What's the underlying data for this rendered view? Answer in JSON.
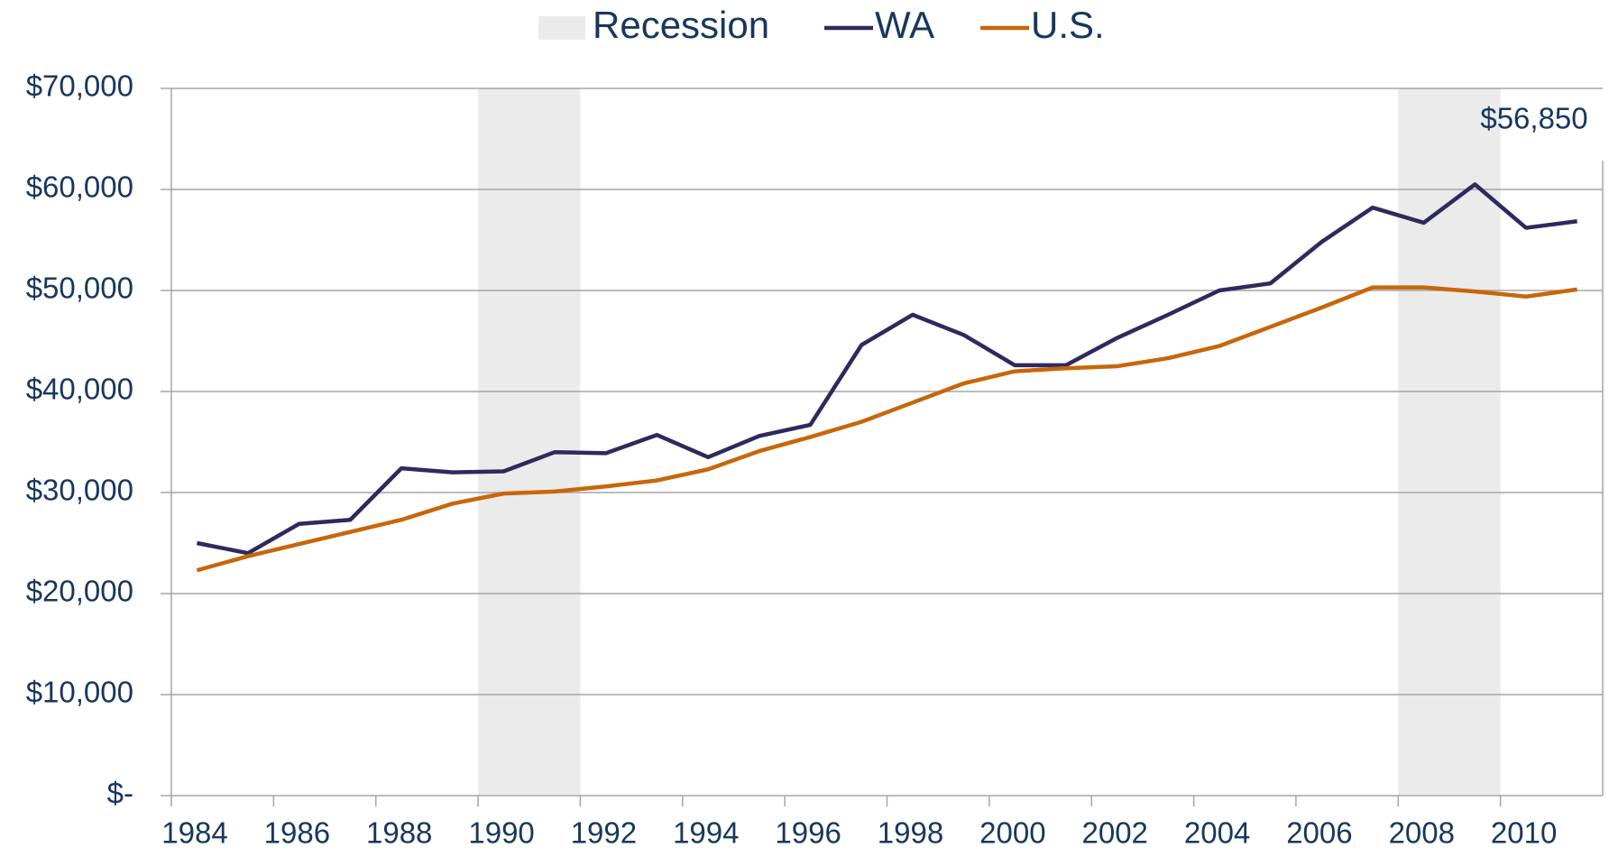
{
  "chart_data": {
    "type": "line",
    "x": [
      1984.5,
      1985.5,
      1986.5,
      1987.5,
      1988.5,
      1989.5,
      1990.5,
      1991.5,
      1992.5,
      1993.5,
      1994.5,
      1995.5,
      1996.5,
      1997.5,
      1998.5,
      1999.5,
      2000.5,
      2001.5,
      2002.5,
      2003.5,
      2004.5,
      2005.5,
      2006.5,
      2007.5,
      2008.5,
      2009.5,
      2010.5,
      2011.5
    ],
    "series": [
      {
        "name": "WA",
        "color": "#2e2a5e",
        "values": [
          25000,
          24000,
          26900,
          27300,
          32400,
          32000,
          32100,
          34000,
          33900,
          35700,
          33500,
          35600,
          36700,
          44600,
          47600,
          45600,
          42600,
          42600,
          45300,
          47600,
          50000,
          50700,
          54800,
          58200,
          56700,
          60500,
          56200,
          56850
        ]
      },
      {
        "name": "U.S.",
        "color": "#c8660b",
        "values": [
          22300,
          23700,
          24900,
          26100,
          27300,
          28900,
          29900,
          30100,
          30600,
          31200,
          32300,
          34100,
          35500,
          37000,
          38900,
          40800,
          42000,
          42300,
          42500,
          43300,
          44500,
          46400,
          48300,
          50300,
          50300,
          49900,
          49400,
          50100
        ]
      }
    ],
    "recessions": {
      "name": "Recession",
      "color": "#ebebeb",
      "spans": [
        [
          1990,
          1992
        ],
        [
          2008,
          2010
        ]
      ]
    },
    "annotations": [
      {
        "text": "$56,850"
      }
    ],
    "xlim": [
      1984,
      2012
    ],
    "xticks": [
      1984,
      1986,
      1988,
      1990,
      1992,
      1994,
      1996,
      1998,
      2000,
      2002,
      2004,
      2006,
      2008,
      2010
    ],
    "ylim": [
      0,
      70000
    ],
    "yticks": [
      {
        "value": 0,
        "label": "$-"
      },
      {
        "value": 10000,
        "label": "$10,000"
      },
      {
        "value": 20000,
        "label": "$20,000"
      },
      {
        "value": 30000,
        "label": "$30,000"
      },
      {
        "value": 40000,
        "label": "$40,000"
      },
      {
        "value": 50000,
        "label": "$50,000"
      },
      {
        "value": 60000,
        "label": "$60,000"
      },
      {
        "value": 70000,
        "label": "$70,000"
      }
    ],
    "grid": true,
    "legend": "top"
  }
}
